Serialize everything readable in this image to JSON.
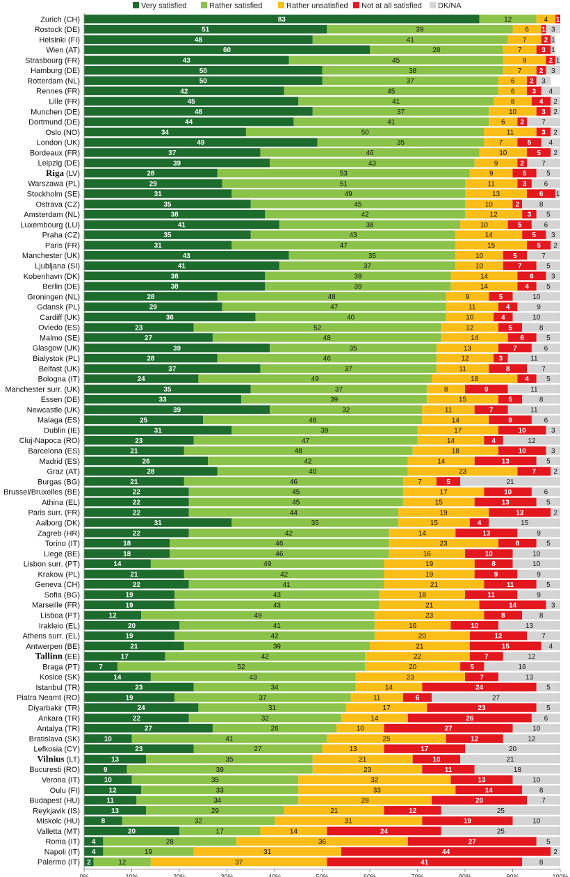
{
  "chart_data": {
    "type": "bar",
    "orientation": "horizontal",
    "stacked": "percent",
    "legend_position": "top",
    "grid": false,
    "xlim": [
      0,
      100
    ],
    "x_ticks": [
      "0%",
      "10%",
      "20%",
      "30%",
      "40%",
      "50%",
      "60%",
      "70%",
      "80%",
      "90%",
      "100%"
    ],
    "series": [
      {
        "name": "Very satisfied",
        "color": "#1e6b2e"
      },
      {
        "name": "Rather satisfied",
        "color": "#8bc34a"
      },
      {
        "name": "Rather unsatisfied",
        "color": "#fbbd18"
      },
      {
        "name": "Not at all satisfied",
        "color": "#e3171e"
      },
      {
        "name": "DK/NA",
        "color": "#d4d4d4"
      }
    ],
    "categories": [
      {
        "name": "Zurich",
        "code": "(CH)",
        "values": [
          83,
          12,
          4,
          1,
          0
        ]
      },
      {
        "name": "Rostock",
        "code": "(DE)",
        "values": [
          51,
          39,
          6,
          1,
          3
        ]
      },
      {
        "name": "Helsinki",
        "code": "(FI)",
        "values": [
          48,
          41,
          7,
          2,
          1
        ]
      },
      {
        "name": "Wien",
        "code": "(AT)",
        "values": [
          60,
          28,
          7,
          3,
          1
        ]
      },
      {
        "name": "Strasbourg",
        "code": "(FR)",
        "values": [
          43,
          45,
          9,
          2,
          1
        ]
      },
      {
        "name": "Hamburg",
        "code": "(DE)",
        "values": [
          50,
          38,
          7,
          2,
          3
        ]
      },
      {
        "name": "Rotterdam",
        "code": "(NL)",
        "values": [
          50,
          37,
          6,
          2,
          3
        ]
      },
      {
        "name": "Rennes",
        "code": "(FR)",
        "values": [
          42,
          45,
          6,
          3,
          4
        ]
      },
      {
        "name": "Lille",
        "code": "(FR)",
        "values": [
          45,
          41,
          8,
          4,
          2
        ]
      },
      {
        "name": "Munchen",
        "code": "(DE)",
        "values": [
          48,
          37,
          10,
          3,
          2
        ]
      },
      {
        "name": "Dortmund",
        "code": "(DE)",
        "values": [
          44,
          41,
          6,
          2,
          7
        ]
      },
      {
        "name": "Oslo",
        "code": "(NO)",
        "values": [
          34,
          50,
          11,
          3,
          2
        ]
      },
      {
        "name": "London",
        "code": "(UK)",
        "values": [
          49,
          35,
          7,
          5,
          4
        ]
      },
      {
        "name": "Bordeaux",
        "code": "(FR)",
        "values": [
          37,
          46,
          10,
          5,
          2
        ]
      },
      {
        "name": "Leipzig",
        "code": "(DE)",
        "values": [
          39,
          43,
          9,
          2,
          7
        ]
      },
      {
        "name": "Riga",
        "code": "(LV)",
        "values": [
          28,
          53,
          9,
          5,
          5
        ],
        "bold": true
      },
      {
        "name": "Warszawa",
        "code": "(PL)",
        "values": [
          29,
          51,
          11,
          3,
          6
        ]
      },
      {
        "name": "Stockholm",
        "code": "(SE)",
        "values": [
          31,
          49,
          13,
          6,
          1
        ]
      },
      {
        "name": "Ostrava",
        "code": "(CZ)",
        "values": [
          35,
          45,
          10,
          2,
          8
        ]
      },
      {
        "name": "Amsterdam",
        "code": "(NL)",
        "values": [
          38,
          42,
          12,
          3,
          5
        ]
      },
      {
        "name": "Luxembourg",
        "code": "(LU)",
        "values": [
          41,
          38,
          10,
          5,
          6
        ]
      },
      {
        "name": "Praha",
        "code": "(CZ)",
        "values": [
          35,
          43,
          14,
          5,
          3
        ]
      },
      {
        "name": "Paris",
        "code": "(FR)",
        "values": [
          31,
          47,
          15,
          5,
          2
        ]
      },
      {
        "name": "Manchester",
        "code": "(UK)",
        "values": [
          43,
          35,
          10,
          5,
          7
        ]
      },
      {
        "name": "Ljubljana",
        "code": "(SI)",
        "values": [
          41,
          37,
          10,
          7,
          5
        ]
      },
      {
        "name": "Kobenhavn",
        "code": "(DK)",
        "values": [
          38,
          39,
          14,
          6,
          3
        ]
      },
      {
        "name": "Berlin",
        "code": "(DE)",
        "values": [
          38,
          39,
          14,
          4,
          5
        ]
      },
      {
        "name": "Groningen",
        "code": "(NL)",
        "values": [
          28,
          48,
          9,
          5,
          10
        ]
      },
      {
        "name": "Gdansk",
        "code": "(PL)",
        "values": [
          29,
          47,
          11,
          4,
          9
        ]
      },
      {
        "name": "Cardiff",
        "code": "(UK)",
        "values": [
          36,
          40,
          10,
          4,
          10
        ]
      },
      {
        "name": "Oviedo",
        "code": "(ES)",
        "values": [
          23,
          52,
          12,
          5,
          8
        ]
      },
      {
        "name": "Malmo",
        "code": "(SE)",
        "values": [
          27,
          48,
          14,
          6,
          5
        ]
      },
      {
        "name": "Glasgow",
        "code": "(UK)",
        "values": [
          39,
          35,
          13,
          7,
          6
        ]
      },
      {
        "name": "Bialystok",
        "code": "(PL)",
        "values": [
          28,
          46,
          12,
          3,
          11
        ]
      },
      {
        "name": "Belfast",
        "code": "(UK)",
        "values": [
          37,
          37,
          11,
          8,
          7
        ]
      },
      {
        "name": "Bologna",
        "code": "(IT)",
        "values": [
          24,
          49,
          18,
          4,
          5
        ]
      },
      {
        "name": "Manchester surr.",
        "code": "(UK)",
        "values": [
          35,
          37,
          8,
          9,
          11
        ]
      },
      {
        "name": "Essen",
        "code": "(DE)",
        "values": [
          33,
          39,
          15,
          5,
          8
        ]
      },
      {
        "name": "Newcastle",
        "code": "(UK)",
        "values": [
          39,
          32,
          11,
          7,
          11
        ]
      },
      {
        "name": "Malaga",
        "code": "(ES)",
        "values": [
          25,
          46,
          14,
          9,
          6
        ]
      },
      {
        "name": "Dublin",
        "code": "(IE)",
        "values": [
          31,
          39,
          17,
          10,
          3
        ]
      },
      {
        "name": "Cluj-Napoca",
        "code": "(RO)",
        "values": [
          23,
          47,
          14,
          4,
          12
        ]
      },
      {
        "name": "Barcelona",
        "code": "(ES)",
        "values": [
          21,
          48,
          18,
          10,
          3
        ]
      },
      {
        "name": "Madrid",
        "code": "(ES)",
        "values": [
          26,
          42,
          14,
          13,
          5
        ]
      },
      {
        "name": "Graz",
        "code": "(AT)",
        "values": [
          28,
          40,
          23,
          7,
          2
        ]
      },
      {
        "name": "Burgas",
        "code": "(BG)",
        "values": [
          21,
          46,
          7,
          5,
          21
        ]
      },
      {
        "name": "Brussel/Bruxelles",
        "code": "(BE)",
        "values": [
          22,
          45,
          17,
          10,
          6
        ]
      },
      {
        "name": "Athina",
        "code": "(EL)",
        "values": [
          22,
          45,
          15,
          13,
          5
        ]
      },
      {
        "name": "Paris surr.",
        "code": "(FR)",
        "values": [
          22,
          44,
          19,
          13,
          2
        ]
      },
      {
        "name": "Aalborg",
        "code": "(DK)",
        "values": [
          31,
          35,
          15,
          4,
          15
        ]
      },
      {
        "name": "Zagreb",
        "code": "(HR)",
        "values": [
          22,
          42,
          14,
          13,
          9
        ]
      },
      {
        "name": "Torino",
        "code": "(IT)",
        "values": [
          18,
          46,
          23,
          8,
          5
        ]
      },
      {
        "name": "Liege",
        "code": "(BE)",
        "values": [
          18,
          46,
          16,
          10,
          10
        ]
      },
      {
        "name": "Lisbon surr.",
        "code": "(PT)",
        "values": [
          14,
          49,
          19,
          8,
          10
        ]
      },
      {
        "name": "Krakow",
        "code": "(PL)",
        "values": [
          21,
          42,
          19,
          9,
          9
        ]
      },
      {
        "name": "Geneva",
        "code": "(CH)",
        "values": [
          22,
          41,
          21,
          11,
          5
        ]
      },
      {
        "name": "Sofia",
        "code": "(BG)",
        "values": [
          19,
          43,
          18,
          11,
          9
        ]
      },
      {
        "name": "Marseille",
        "code": "(FR)",
        "values": [
          19,
          43,
          21,
          14,
          3
        ]
      },
      {
        "name": "Lisboa",
        "code": "(PT)",
        "values": [
          12,
          49,
          23,
          8,
          8
        ]
      },
      {
        "name": "Irakleio",
        "code": "(EL)",
        "values": [
          20,
          41,
          16,
          10,
          13
        ]
      },
      {
        "name": "Athens surr.",
        "code": "(EL)",
        "values": [
          19,
          42,
          20,
          12,
          7
        ]
      },
      {
        "name": "Antwerpen",
        "code": "(BE)",
        "values": [
          21,
          39,
          21,
          15,
          4
        ]
      },
      {
        "name": "Tallinn",
        "code": "(EE)",
        "values": [
          17,
          42,
          22,
          7,
          12
        ],
        "bold": true
      },
      {
        "name": "Braga",
        "code": "(PT)",
        "values": [
          7,
          52,
          20,
          5,
          16
        ]
      },
      {
        "name": "Kosice",
        "code": "(SK)",
        "values": [
          14,
          43,
          23,
          7,
          13
        ]
      },
      {
        "name": "Istanbul",
        "code": "(TR)",
        "values": [
          23,
          34,
          14,
          24,
          5
        ]
      },
      {
        "name": "Piatra Neamt",
        "code": "(RO)",
        "values": [
          19,
          37,
          11,
          6,
          27
        ]
      },
      {
        "name": "Diyarbakir",
        "code": "(TR)",
        "values": [
          24,
          31,
          17,
          23,
          5
        ]
      },
      {
        "name": "Ankara",
        "code": "(TR)",
        "values": [
          22,
          32,
          14,
          26,
          6
        ]
      },
      {
        "name": "Antalya",
        "code": "(TR)",
        "values": [
          27,
          26,
          10,
          27,
          10
        ]
      },
      {
        "name": "Bratislava",
        "code": "(SK)",
        "values": [
          10,
          41,
          25,
          12,
          12
        ]
      },
      {
        "name": "Lefkosia",
        "code": "(CY)",
        "values": [
          23,
          27,
          13,
          17,
          20
        ]
      },
      {
        "name": "Vilnius",
        "code": "(LT)",
        "values": [
          13,
          35,
          21,
          10,
          21
        ],
        "bold": true
      },
      {
        "name": "Bucuresti",
        "code": "(RO)",
        "values": [
          9,
          39,
          23,
          11,
          18
        ]
      },
      {
        "name": "Verona",
        "code": "(IT)",
        "values": [
          10,
          35,
          32,
          13,
          10
        ]
      },
      {
        "name": "Oulu",
        "code": "(FI)",
        "values": [
          12,
          33,
          33,
          14,
          8
        ]
      },
      {
        "name": "Budapest",
        "code": "(HU)",
        "values": [
          11,
          34,
          28,
          20,
          7
        ]
      },
      {
        "name": "Reykjavik",
        "code": "(IS)",
        "values": [
          13,
          29,
          21,
          12,
          25
        ]
      },
      {
        "name": "Miskolc",
        "code": "(HU)",
        "values": [
          8,
          32,
          31,
          19,
          10
        ]
      },
      {
        "name": "Valletta",
        "code": "(MT)",
        "values": [
          20,
          17,
          14,
          24,
          25
        ]
      },
      {
        "name": "Roma",
        "code": "(IT)",
        "values": [
          4,
          28,
          36,
          27,
          5
        ]
      },
      {
        "name": "Napoli",
        "code": "(IT)",
        "values": [
          4,
          19,
          31,
          44,
          2
        ]
      },
      {
        "name": "Palermo",
        "code": "(IT)",
        "values": [
          2,
          12,
          37,
          41,
          8
        ]
      }
    ]
  }
}
